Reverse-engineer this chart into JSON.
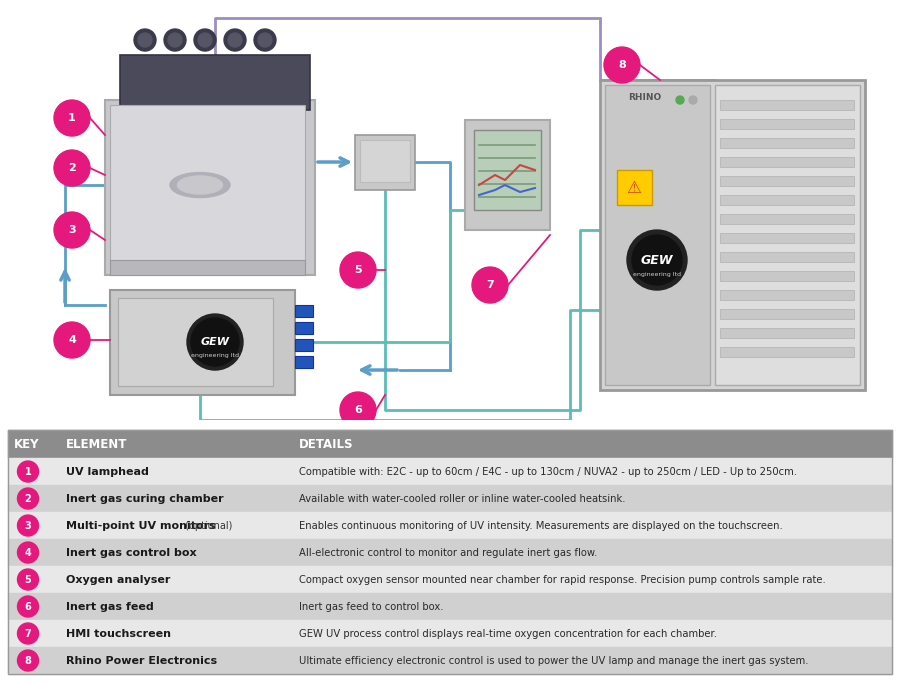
{
  "table_header_bg": "#8c8c8c",
  "table_header_text": "#ffffff",
  "table_row_bg_odd": "#e8e8e8",
  "table_row_bg_even": "#d0d0d0",
  "table_text_color": "#333333",
  "bullet_color": "#e5197d",
  "header": [
    "KEY",
    "ELEMENT",
    "DETAILS"
  ],
  "rows": [
    {
      "num": "1",
      "element": "UV lamphead",
      "element_optional": "",
      "detail": "Compatible with: E2C - up to 60cm / E4C - up to 130cm / NUVA2 - up to 250cm / LED - Up to 250cm."
    },
    {
      "num": "2",
      "element": "Inert gas curing chamber",
      "element_optional": "",
      "detail": "Available with water-cooled roller or inline water-cooled heatsink."
    },
    {
      "num": "3",
      "element": "Multi-point UV monitors",
      "element_optional": " (optional)",
      "detail": "Enables continuous monitoring of UV intensity. Measurements are displayed on the touchscreen."
    },
    {
      "num": "4",
      "element": "Inert gas control box",
      "element_optional": "",
      "detail": "All-electronic control to monitor and regulate inert gas flow."
    },
    {
      "num": "5",
      "element": "Oxygen analyser",
      "element_optional": "",
      "detail": "Compact oxygen sensor mounted near chamber for rapid response. Precision pump controls sample rate."
    },
    {
      "num": "6",
      "element": "Inert gas feed",
      "element_optional": "",
      "detail": "Inert gas feed to control box."
    },
    {
      "num": "7",
      "element": "HMI touchscreen",
      "element_optional": "",
      "detail": "GEW UV process control displays real-time oxygen concentration for each chamber."
    },
    {
      "num": "8",
      "element": "Rhino Power Electronics",
      "element_optional": "",
      "detail": "Ultimate efficiency electronic control is used to power the UV lamp and manage the inert gas system."
    }
  ],
  "blue_color": "#5b9ec9",
  "teal_color": "#5bbdb5",
  "purple_color": "#9b8ec4",
  "pink_color": "#e5197d",
  "gray_light": "#d0d0d0",
  "gray_mid": "#b0b0b0",
  "gray_dark": "#888888"
}
